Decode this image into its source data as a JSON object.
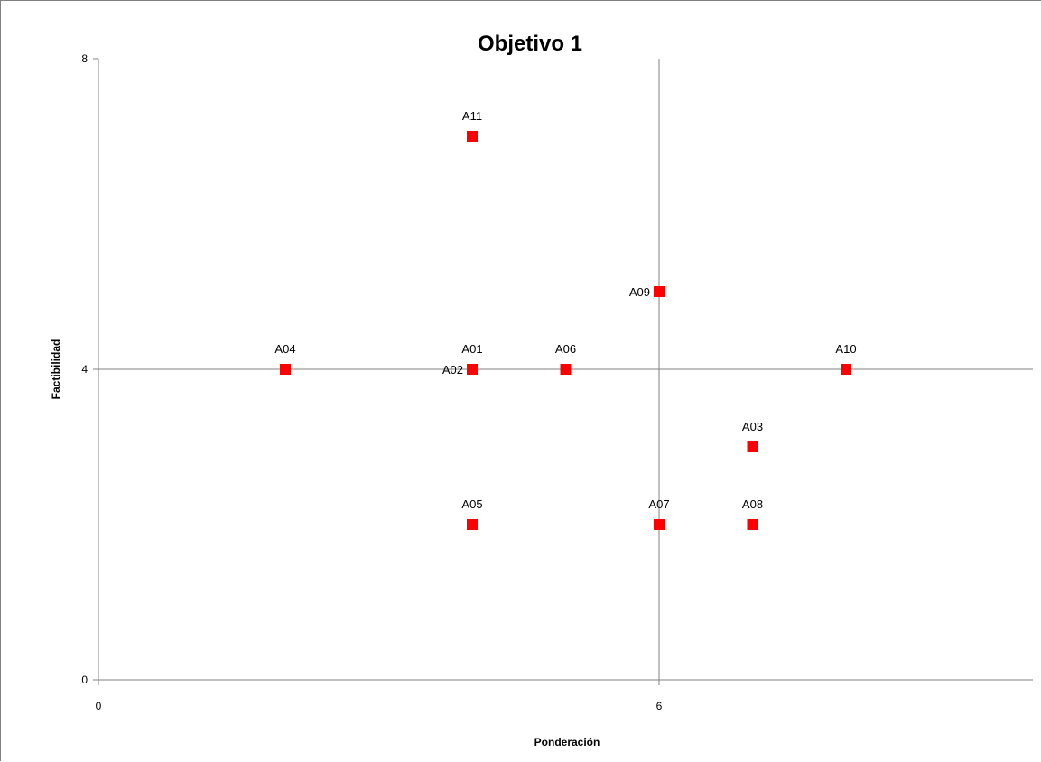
{
  "chart_data": {
    "type": "scatter",
    "title": "Objetivo 1",
    "xlabel": "Ponderación",
    "ylabel": "Factibilidad",
    "xlim": [
      0,
      10
    ],
    "ylim": [
      0,
      8
    ],
    "x_ticks": [
      0,
      6
    ],
    "y_ticks": [
      0,
      4,
      8
    ],
    "crosshair": {
      "x": 6,
      "y": 4
    },
    "grid": false,
    "legend": "none",
    "marker_color": "#ff0000",
    "marker": "square",
    "points": [
      {
        "label": "A01",
        "x": 4,
        "y": 4,
        "label_pos": "above"
      },
      {
        "label": "A02",
        "x": 4,
        "y": 4,
        "label_pos": "left"
      },
      {
        "label": "A03",
        "x": 7,
        "y": 3,
        "label_pos": "above"
      },
      {
        "label": "A04",
        "x": 2,
        "y": 4,
        "label_pos": "above"
      },
      {
        "label": "A05",
        "x": 4,
        "y": 2,
        "label_pos": "above"
      },
      {
        "label": "A06",
        "x": 5,
        "y": 4,
        "label_pos": "above"
      },
      {
        "label": "A07",
        "x": 6,
        "y": 2,
        "label_pos": "above"
      },
      {
        "label": "A08",
        "x": 7,
        "y": 2,
        "label_pos": "above"
      },
      {
        "label": "A09",
        "x": 6,
        "y": 5,
        "label_pos": "left"
      },
      {
        "label": "A10",
        "x": 8,
        "y": 4,
        "label_pos": "above"
      },
      {
        "label": "A11",
        "x": 4,
        "y": 7,
        "label_pos": "above"
      }
    ]
  }
}
